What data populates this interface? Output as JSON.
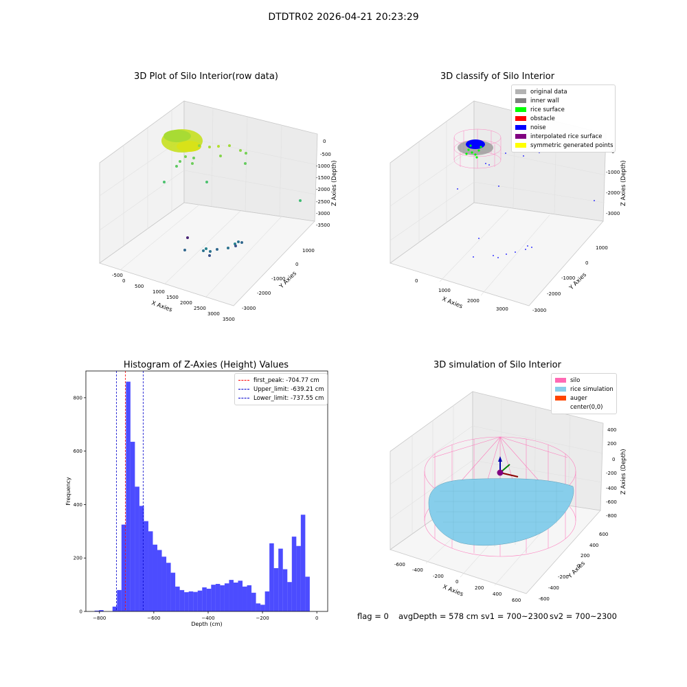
{
  "figure": {
    "suptitle": "DTDTR02 2026-04-21 20:23:29"
  },
  "status_line": {
    "flag": "flag = 0",
    "avg_depth": "avgDepth = 578 cm",
    "sv1": "sv1 = 700~2300",
    "sv2": "sv2 = 700~2300"
  },
  "colors": {
    "hist_bar": "#0000ff",
    "first_peak": "#ff0000",
    "limits": "#0000cc",
    "silo": "#ff69b4",
    "rice": "#87ceeb",
    "auger": "#ff4500"
  },
  "chart_data": [
    {
      "type": "scatter3d",
      "title": "3D Plot of Silo Interior(row data)",
      "xlabel": "X Axies",
      "ylabel": "Y Axies",
      "zlabel": "Z Axies (Depth)",
      "x_ticks": [
        "-500",
        "0",
        "500",
        "1000",
        "1500",
        "2000",
        "2500",
        "3000",
        "3500"
      ],
      "y_ticks": [
        "1000",
        "0",
        "-1000",
        "-2000",
        "-3000"
      ],
      "z_ticks": [
        "0",
        "-500",
        "-1000",
        "-1500",
        "-2000",
        "-2500",
        "-3000",
        "-3500"
      ]
    },
    {
      "type": "scatter3d",
      "title": "3D classify of Silo Interior",
      "xlabel": "X Axies",
      "ylabel": "Y Axies",
      "zlabel": "Z Axies (Depth)",
      "x_ticks": [
        "0",
        "1000",
        "2000",
        "3000"
      ],
      "y_ticks": [
        "1000",
        "0",
        "-1000",
        "-2000",
        "-3000"
      ],
      "z_ticks": [
        "0",
        "-1000",
        "-2000",
        "-3000"
      ],
      "legend": [
        {
          "label": "original data",
          "color": "#b3b3b3"
        },
        {
          "label": "inner wall",
          "color": "#808080"
        },
        {
          "label": "rice surface",
          "color": "#00ff00"
        },
        {
          "label": "obstacle",
          "color": "#ff0000"
        },
        {
          "label": "noise",
          "color": "#0000ff"
        },
        {
          "label": "interpolated rice surface",
          "color": "#800080"
        },
        {
          "label": "symmetric generated points",
          "color": "#ffff00"
        }
      ]
    },
    {
      "type": "bar",
      "title": "Histogram of Z-Axies (Height) Values",
      "xlabel": "Depth (cm)",
      "ylabel": "Frequency",
      "xlim": [
        -850,
        40
      ],
      "ylim": [
        0,
        900
      ],
      "x_ticks": [
        -800,
        -600,
        -400,
        -200,
        0
      ],
      "y_ticks": [
        0,
        200,
        400,
        600,
        800
      ],
      "bin_width": 16.5,
      "bins": [
        {
          "x0": -818,
          "v": 3
        },
        {
          "x0": -801.5,
          "v": 5
        },
        {
          "x0": -785,
          "v": 0
        },
        {
          "x0": -768.5,
          "v": 0
        },
        {
          "x0": -752,
          "v": 18
        },
        {
          "x0": -735.5,
          "v": 80
        },
        {
          "x0": -719,
          "v": 325
        },
        {
          "x0": -702.5,
          "v": 860
        },
        {
          "x0": -686,
          "v": 635
        },
        {
          "x0": -669.5,
          "v": 467
        },
        {
          "x0": -653,
          "v": 395
        },
        {
          "x0": -636.5,
          "v": 338
        },
        {
          "x0": -620,
          "v": 300
        },
        {
          "x0": -603.5,
          "v": 250
        },
        {
          "x0": -587,
          "v": 230
        },
        {
          "x0": -570.5,
          "v": 205
        },
        {
          "x0": -554,
          "v": 182
        },
        {
          "x0": -537.5,
          "v": 145
        },
        {
          "x0": -521,
          "v": 93
        },
        {
          "x0": -504.5,
          "v": 80
        },
        {
          "x0": -488,
          "v": 72
        },
        {
          "x0": -471.5,
          "v": 75
        },
        {
          "x0": -455,
          "v": 73
        },
        {
          "x0": -438.5,
          "v": 78
        },
        {
          "x0": -422,
          "v": 90
        },
        {
          "x0": -405.5,
          "v": 85
        },
        {
          "x0": -389,
          "v": 100
        },
        {
          "x0": -372.5,
          "v": 103
        },
        {
          "x0": -356,
          "v": 98
        },
        {
          "x0": -339.5,
          "v": 105
        },
        {
          "x0": -323,
          "v": 118
        },
        {
          "x0": -306.5,
          "v": 108
        },
        {
          "x0": -290,
          "v": 115
        },
        {
          "x0": -273.5,
          "v": 93
        },
        {
          "x0": -257,
          "v": 98
        },
        {
          "x0": -240.5,
          "v": 70
        },
        {
          "x0": -224,
          "v": 30
        },
        {
          "x0": -207.5,
          "v": 25
        },
        {
          "x0": -191,
          "v": 75
        },
        {
          "x0": -174.5,
          "v": 255
        },
        {
          "x0": -158,
          "v": 162
        },
        {
          "x0": -141.5,
          "v": 235
        },
        {
          "x0": -125,
          "v": 158
        },
        {
          "x0": -108.5,
          "v": 110
        },
        {
          "x0": -92,
          "v": 280
        },
        {
          "x0": -75.5,
          "v": 245
        },
        {
          "x0": -59,
          "v": 362
        },
        {
          "x0": -42.5,
          "v": 130
        }
      ],
      "lines": [
        {
          "label": "first_peak: -704.77 cm",
          "x": -704.77,
          "color": "#ff0000"
        },
        {
          "label": "Upper_limit: -639.21 cm",
          "x": -639.21,
          "color": "#0000cc"
        },
        {
          "label": "Lower_limit: -737.55 cm",
          "x": -737.55,
          "color": "#0000cc"
        }
      ]
    },
    {
      "type": "surface3d",
      "title": "3D simulation of Silo Interior",
      "xlabel": "X Axies",
      "ylabel": "Y Axies",
      "zlabel": "Z Axies (Depth)",
      "x_ticks": [
        "-600",
        "-400",
        "-200",
        "0",
        "200",
        "400",
        "600"
      ],
      "y_ticks": [
        "600",
        "400",
        "200",
        "0",
        "-200",
        "-400",
        "-600"
      ],
      "z_ticks": [
        "400",
        "200",
        "0",
        "-200",
        "-400",
        "-600",
        "-800"
      ],
      "legend": [
        {
          "label": "silo",
          "color": "#ff69b4"
        },
        {
          "label": "rice simulation",
          "color": "#87ceeb"
        },
        {
          "label": "auger",
          "color": "#ff4500"
        },
        {
          "label": "center(0,0)",
          "color": "#ffffff"
        }
      ]
    }
  ]
}
